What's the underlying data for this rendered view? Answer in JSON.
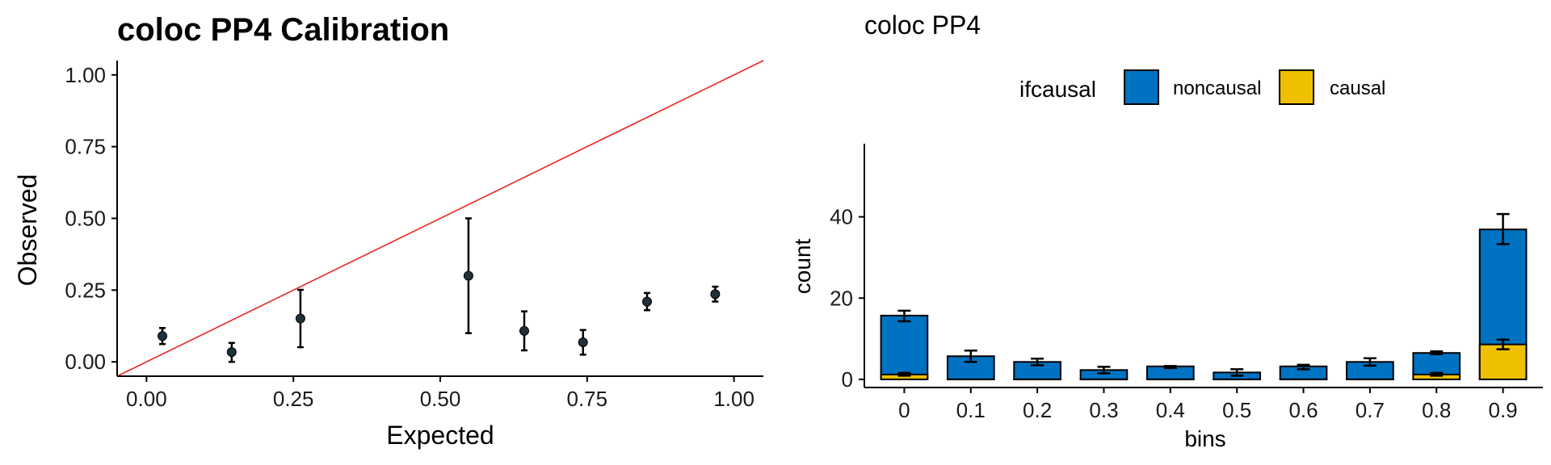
{
  "colors": {
    "refline": "#e8271f",
    "point": "#1f3039",
    "noncausal": "#0072c2",
    "causal": "#efc000"
  },
  "chart_data": [
    {
      "type": "scatter",
      "title": "coloc PP4 Calibration",
      "xlabel": "Expected",
      "ylabel": "Observed",
      "xlim": [
        -0.05,
        1.05
      ],
      "ylim": [
        -0.05,
        1.05
      ],
      "xticks": [
        0,
        0.25,
        0.5,
        0.75,
        1
      ],
      "xtick_labels": [
        "0.00",
        "0.25",
        "0.50",
        "0.75",
        "1.00"
      ],
      "yticks": [
        0,
        0.25,
        0.5,
        0.75,
        1
      ],
      "ytick_labels": [
        "0.00",
        "0.25",
        "0.50",
        "0.75",
        "1.00"
      ],
      "reference_line": "y = x",
      "points": [
        {
          "x": 0.027,
          "y": 0.09,
          "lo": 0.062,
          "hi": 0.118
        },
        {
          "x": 0.145,
          "y": 0.034,
          "lo": 0.0,
          "hi": 0.066
        },
        {
          "x": 0.262,
          "y": 0.151,
          "lo": 0.051,
          "hi": 0.251
        },
        {
          "x": 0.548,
          "y": 0.3,
          "lo": 0.1,
          "hi": 0.5
        },
        {
          "x": 0.643,
          "y": 0.108,
          "lo": 0.04,
          "hi": 0.176
        },
        {
          "x": 0.743,
          "y": 0.068,
          "lo": 0.025,
          "hi": 0.111
        },
        {
          "x": 0.852,
          "y": 0.21,
          "lo": 0.18,
          "hi": 0.24
        },
        {
          "x": 0.968,
          "y": 0.236,
          "lo": 0.21,
          "hi": 0.262
        }
      ],
      "grid": false
    },
    {
      "type": "bar",
      "title": "coloc PP4",
      "xlabel": "bins",
      "ylabel": "count",
      "categories": [
        "0",
        "0.1",
        "0.2",
        "0.3",
        "0.4",
        "0.5",
        "0.6",
        "0.7",
        "0.8",
        "0.9"
      ],
      "ylim": [
        -2,
        58
      ],
      "yticks": [
        0,
        20,
        40
      ],
      "ytick_labels": [
        "0",
        "20",
        "40"
      ],
      "legend_title": "ifcausal",
      "legend_placement": "top",
      "stacked": true,
      "series": [
        {
          "name": "noncausal",
          "values": [
            14.5,
            5.7,
            4.3,
            2.3,
            3.2,
            1.7,
            3.2,
            4.3,
            5.3,
            28.3
          ],
          "err_lo": [
            14.3,
            4.3,
            3.5,
            1.5,
            2.8,
            0.9,
            2.5,
            3.4,
            6.2,
            33.3
          ],
          "err_hi": [
            16.9,
            7.1,
            5.1,
            3.1,
            3.3,
            2.5,
            3.6,
            5.2,
            6.9,
            40.7
          ]
        },
        {
          "name": "causal",
          "values": [
            1.2,
            0,
            0,
            0,
            0,
            0,
            0,
            0,
            1.2,
            8.6
          ],
          "err_lo": [
            0.9,
            0,
            0,
            0,
            0,
            0,
            0,
            0,
            0.9,
            7.4
          ],
          "err_hi": [
            1.6,
            0,
            0,
            0,
            0,
            0,
            0,
            0,
            1.6,
            9.8
          ]
        }
      ],
      "grid": false
    }
  ]
}
